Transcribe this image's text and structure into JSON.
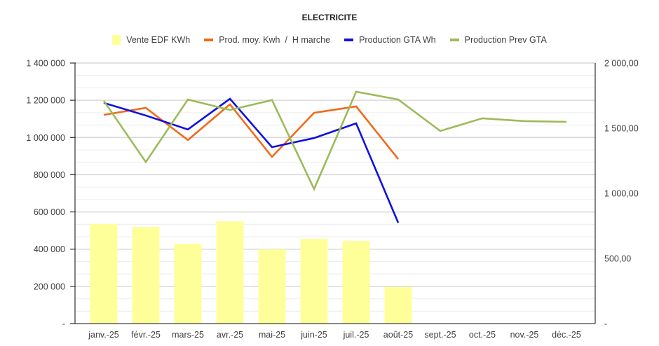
{
  "chart_data": {
    "type": "bar",
    "title": "ELECTRICITE",
    "categories": [
      "janv.-25",
      "févr.-25",
      "mars-25",
      "avr.-25",
      "mai-25",
      "juin-25",
      "juil.-25",
      "août-25",
      "sept.-25",
      "oct.-25",
      "nov.-25",
      "déc.-25"
    ],
    "left_axis": {
      "ylim": [
        0,
        1400000
      ],
      "ticks": [
        0,
        200000,
        400000,
        600000,
        800000,
        1000000,
        1200000,
        1400000
      ],
      "tick_labels": [
        "-",
        "200 000",
        "400 000",
        "600 000",
        "800 000",
        "1 000 000",
        "1 200 000",
        "1 400 000"
      ]
    },
    "right_axis": {
      "ylim": [
        0,
        2000
      ],
      "ticks": [
        0,
        500,
        1000,
        1500,
        2000
      ],
      "tick_labels": [
        "-",
        "500,00",
        "1 000,00",
        "1 500,00",
        "2 000,00"
      ]
    },
    "grid": true,
    "legend_position": "top",
    "series": [
      {
        "name": "Vente EDF KWh",
        "type": "bar",
        "axis": "left",
        "color": "#ffff99",
        "values": [
          534000,
          519000,
          429000,
          549000,
          399000,
          455000,
          444000,
          196000,
          null,
          null,
          null,
          null
        ]
      },
      {
        "name": "Prod. moy. Kwh  /  H marche",
        "type": "line",
        "axis": "right",
        "color": "#f26a1b",
        "values": [
          1602,
          1656,
          1409,
          1683,
          1280,
          1618,
          1667,
          1263,
          null,
          null,
          null,
          null
        ]
      },
      {
        "name": "Production GTA Wh",
        "type": "line",
        "axis": "left",
        "color": "#1010e0",
        "values": [
          1186000,
          1118000,
          1043000,
          1208000,
          948000,
          997000,
          1076000,
          542000,
          null,
          null,
          null,
          null
        ]
      },
      {
        "name": "Production Prev GTA",
        "type": "line",
        "axis": "left",
        "color": "#9bbb59",
        "values": [
          1197000,
          868000,
          1204000,
          1148000,
          1201000,
          723000,
          1246000,
          1204000,
          1035000,
          1103000,
          1088000,
          1084000
        ]
      }
    ]
  }
}
